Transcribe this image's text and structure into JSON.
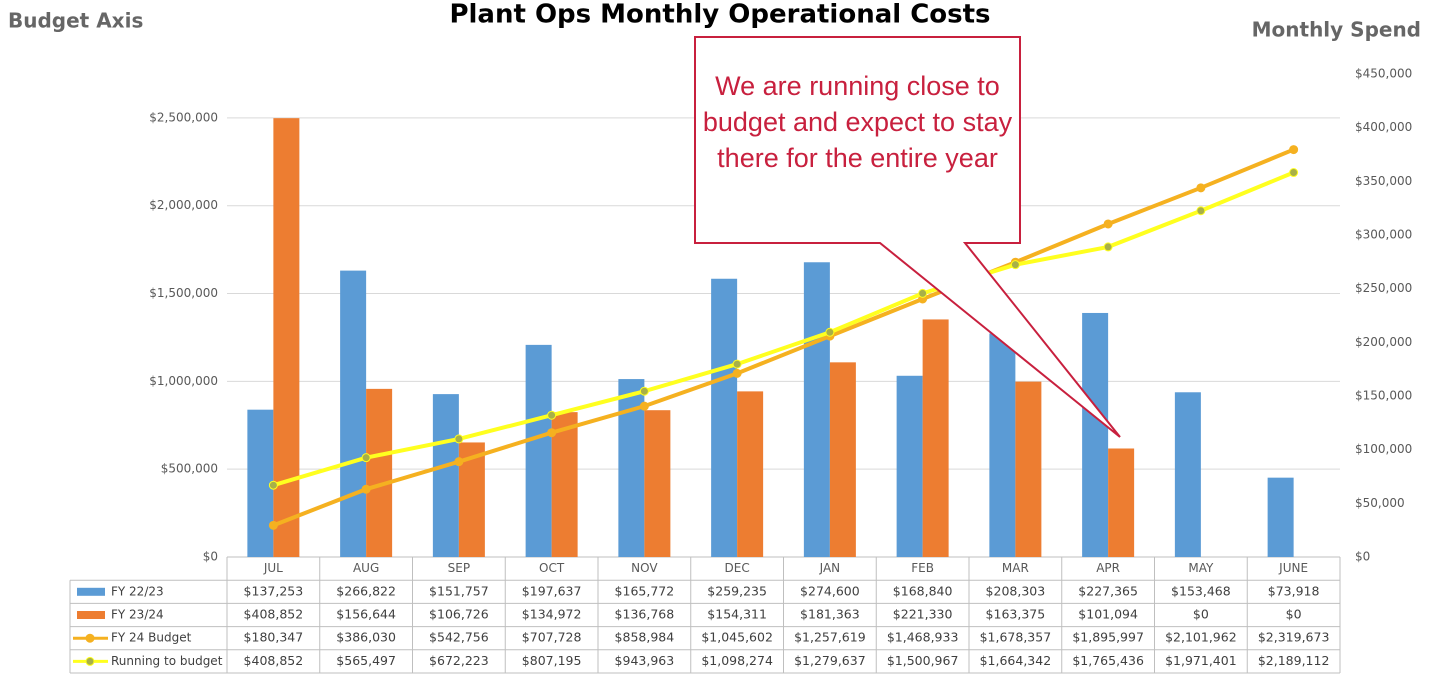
{
  "chart_data": {
    "type": "bar",
    "title": "Plant Ops Monthly Operational Costs",
    "y_label": "Budget Axis",
    "y2_label": "Monthly Spend",
    "annotation": "We are running close to budget and expect to stay there for the entire year",
    "categories": [
      "JUL",
      "AUG",
      "SEP",
      "OCT",
      "NOV",
      "DEC",
      "JAN",
      "FEB",
      "MAR",
      "APR",
      "MAY",
      "JUNE"
    ],
    "series": [
      {
        "name": "FY 22/23",
        "type": "bar",
        "axis": "y2",
        "color": "#5b9bd5",
        "values": [
          137253,
          266822,
          151757,
          197637,
          165772,
          259235,
          274600,
          168840,
          208303,
          227365,
          153468,
          73918
        ],
        "value_labels": [
          "$137,253",
          "$266,822",
          "$151,757",
          "$197,637",
          "$165,772",
          "$259,235",
          "$274,600",
          "$168,840",
          "$208,303",
          "$227,365",
          "$153,468",
          "$73,918"
        ]
      },
      {
        "name": "FY 23/24",
        "type": "bar",
        "axis": "y2",
        "color": "#ed7d31",
        "values": [
          408852,
          156644,
          106726,
          134972,
          136768,
          154311,
          181363,
          221330,
          163375,
          101094,
          0,
          0
        ],
        "value_labels": [
          "$408,852",
          "$156,644",
          "$106,726",
          "$134,972",
          "$136,768",
          "$154,311",
          "$181,363",
          "$221,330",
          "$163,375",
          "$101,094",
          "$0",
          "$0"
        ]
      },
      {
        "name": "FY 24 Budget",
        "type": "line",
        "axis": "y",
        "color": "#f5b120",
        "marker_color": "#f5b120",
        "values": [
          180347,
          386030,
          542756,
          707728,
          858984,
          1045602,
          1257619,
          1468933,
          1678357,
          1895997,
          2101962,
          2319673
        ],
        "value_labels": [
          "$180,347",
          "$386,030",
          "$542,756",
          "$707,728",
          "$858,984",
          "$1,045,602",
          "$1,257,619",
          "$1,468,933",
          "$1,678,357",
          "$1,895,997",
          "$2,101,962",
          "$2,319,673"
        ]
      },
      {
        "name": "Running to budget",
        "type": "line",
        "axis": "y",
        "color": "#ffff1f",
        "marker_color": "#a8b048",
        "values": [
          408852,
          565497,
          672223,
          807195,
          943963,
          1098274,
          1279637,
          1500967,
          1664342,
          1765436,
          1971401,
          2189112
        ],
        "value_labels": [
          "$408,852",
          "$565,497",
          "$672,223",
          "$807,195",
          "$943,963",
          "$1,098,274",
          "$1,279,637",
          "$1,500,967",
          "$1,664,342",
          "$1,765,436",
          "$1,971,401",
          "$2,189,112"
        ]
      }
    ],
    "ylim": [
      0,
      2750000
    ],
    "yticks": [
      {
        "value": 0,
        "label": "$0"
      },
      {
        "value": 500000,
        "label": "$500,000"
      },
      {
        "value": 1000000,
        "label": "$1,000,000"
      },
      {
        "value": 1500000,
        "label": "$1,500,000"
      },
      {
        "value": 2000000,
        "label": "$2,000,000"
      },
      {
        "value": 2500000,
        "label": "$2,500,000"
      }
    ],
    "y2lim": [
      0,
      450000
    ],
    "y2ticks": [
      {
        "value": 0,
        "label": "$0"
      },
      {
        "value": 50000,
        "label": "$50,000"
      },
      {
        "value": 100000,
        "label": "$100,000"
      },
      {
        "value": 150000,
        "label": "$150,000"
      },
      {
        "value": 200000,
        "label": "$200,000"
      },
      {
        "value": 250000,
        "label": "$250,000"
      },
      {
        "value": 300000,
        "label": "$300,000"
      },
      {
        "value": 350000,
        "label": "$350,000"
      },
      {
        "value": 400000,
        "label": "$400,000"
      },
      {
        "value": 450000,
        "label": "$450,000"
      }
    ],
    "grid": true
  }
}
